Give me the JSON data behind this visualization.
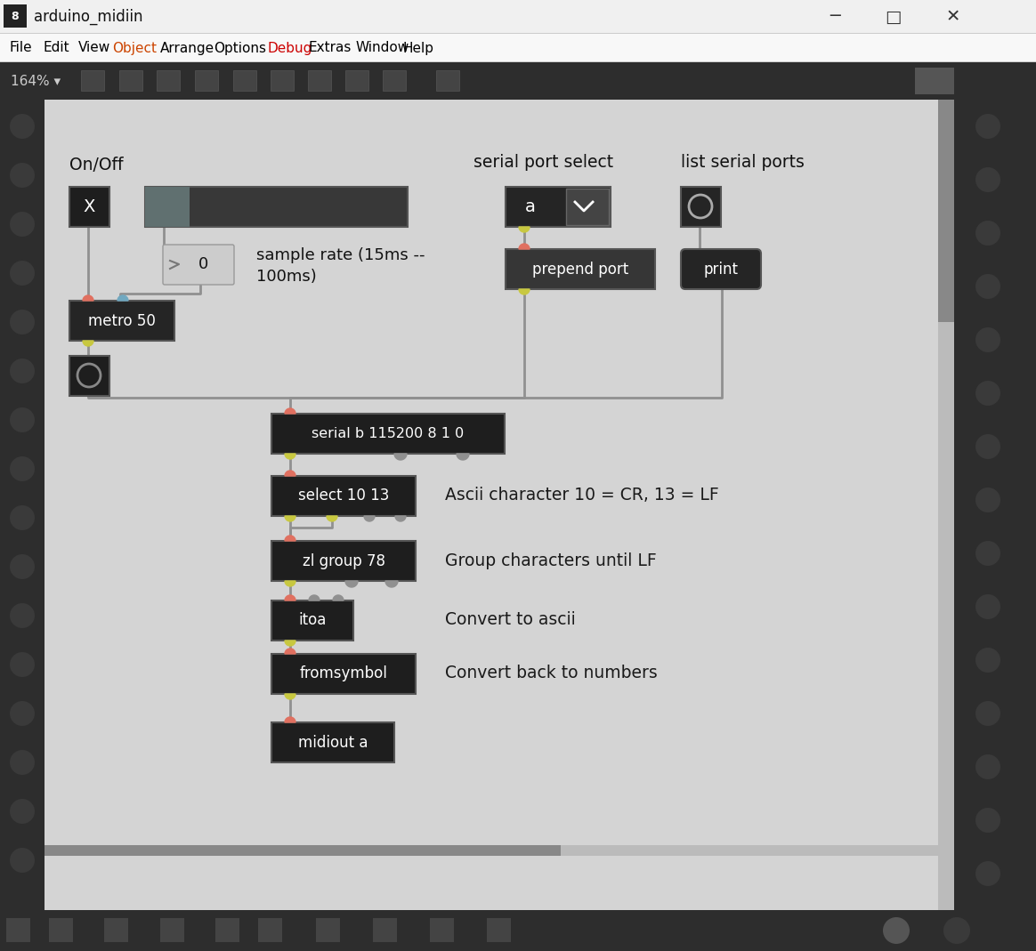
{
  "title_bar_text": "arduino_midiin",
  "menu_items": [
    "File",
    "Edit",
    "View",
    "Object",
    "Arrange",
    "Options",
    "Debug",
    "Extras",
    "Window",
    "Help"
  ],
  "menu_colors": {
    "File": "#000000",
    "Edit": "#000000",
    "View": "#000000",
    "Object": "#cc4400",
    "Arrange": "#000000",
    "Options": "#000000",
    "Debug": "#cc0000",
    "Extras": "#000000",
    "Window": "#000000",
    "Help": "#000000"
  },
  "zoom_label": "164% ▾",
  "titlebar_bg": "#f0f0f0",
  "menubar_bg": "#f8f8f8",
  "toolbar_bg": "#2d2d2d",
  "sidebar_bg": "#2d2d2d",
  "canvas_bg": "#d4d4d4",
  "bottom_bg": "#2d2d2d",
  "node_dark": "#252525",
  "node_mid": "#3a3a3a",
  "node_edge": "#555555",
  "wire_color": "#909090",
  "inlet_red": "#e07060",
  "inlet_blue": "#70a8c0",
  "outlet_yellow": "#c8c840",
  "outlet_grey": "#909090",
  "figsize": [
    11.64,
    10.69
  ],
  "dpi": 100
}
